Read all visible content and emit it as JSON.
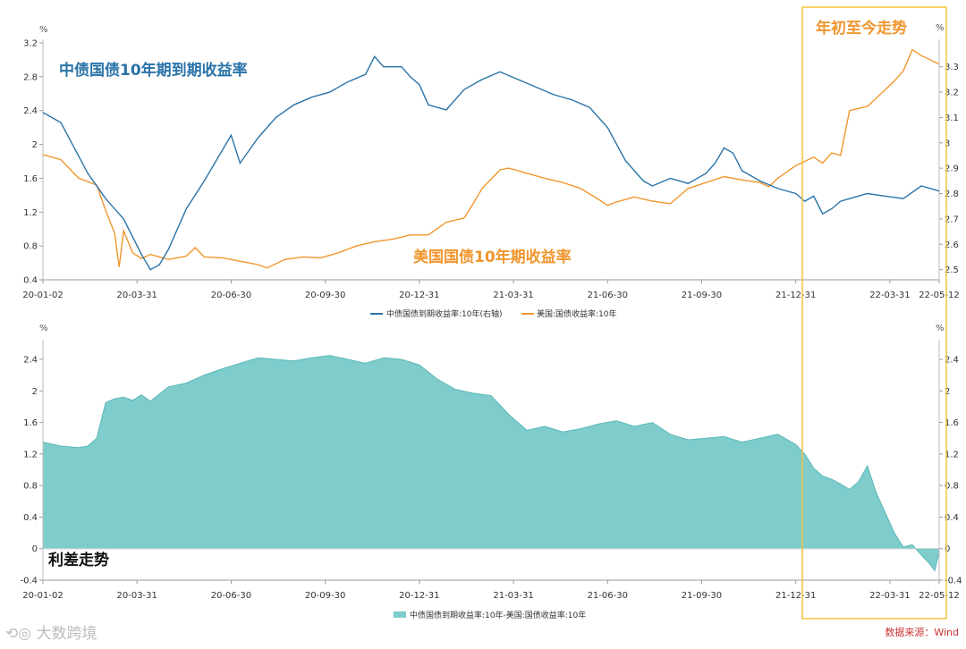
{
  "colors": {
    "cn_line": "#2a73a8",
    "us_line": "#f0962e",
    "spread_fill": "#7ecccc",
    "spread_stroke": "#5db8b8",
    "highlight_box": "#f2c43d",
    "annotation_blue": "#2a73a8",
    "annotation_orange": "#f0962e",
    "annotation_black": "#111111",
    "axis": "#999999"
  },
  "annotations": {
    "cn_label": "中债国债10年期到期收益率",
    "us_label": "美国国债10年期收益率",
    "ytd_label": "年初至今走势",
    "spread_label": "利差走势"
  },
  "watermark": "大数跨境",
  "source": "数据来源：Wind",
  "chart_data": [
    {
      "type": "line",
      "name": "top",
      "x_ticks": [
        "20-01-02",
        "20-03-31",
        "20-06-30",
        "20-09-30",
        "20-12-31",
        "21-03-31",
        "21-06-30",
        "21-09-30",
        "21-12-31",
        "22-03-31",
        "22-05-12"
      ],
      "left_axis": {
        "unit": "%",
        "ticks": [
          "0.4",
          "0.8",
          "1.2",
          "1.6",
          "2",
          "2.4",
          "2.8",
          "3.2"
        ],
        "ylim": [
          0.4,
          3.2
        ]
      },
      "right_axis": {
        "unit": "%",
        "ticks": [
          "2.5",
          "2.6",
          "2.7",
          "2.8",
          "2.9",
          "3",
          "3.1",
          "3.2",
          "3.3"
        ],
        "ylim": [
          2.46,
          3.38
        ]
      },
      "legend": [
        "中债国债到期收益率:10年(右轴)",
        "美国:国债收益率:10年"
      ],
      "series": [
        {
          "name": "中债国债到期收益率:10年(右轴)",
          "axis": "right",
          "points": [
            [
              0,
              3.12
            ],
            [
              0.02,
              3.08
            ],
            [
              0.05,
              2.88
            ],
            [
              0.07,
              2.78
            ],
            [
              0.09,
              2.7
            ],
            [
              0.1,
              2.63
            ],
            [
              0.11,
              2.56
            ],
            [
              0.12,
              2.5
            ],
            [
              0.13,
              2.52
            ],
            [
              0.14,
              2.58
            ],
            [
              0.16,
              2.74
            ],
            [
              0.18,
              2.85
            ],
            [
              0.2,
              2.97
            ],
            [
              0.21,
              3.03
            ],
            [
              0.22,
              2.92
            ],
            [
              0.24,
              3.02
            ],
            [
              0.26,
              3.1
            ],
            [
              0.28,
              3.15
            ],
            [
              0.3,
              3.18
            ],
            [
              0.32,
              3.2
            ],
            [
              0.34,
              3.24
            ],
            [
              0.36,
              3.27
            ],
            [
              0.37,
              3.34
            ],
            [
              0.38,
              3.3
            ],
            [
              0.4,
              3.3
            ],
            [
              0.41,
              3.26
            ],
            [
              0.42,
              3.23
            ],
            [
              0.43,
              3.15
            ],
            [
              0.45,
              3.13
            ],
            [
              0.47,
              3.21
            ],
            [
              0.49,
              3.25
            ],
            [
              0.51,
              3.28
            ],
            [
              0.53,
              3.25
            ],
            [
              0.55,
              3.22
            ],
            [
              0.57,
              3.19
            ],
            [
              0.59,
              3.17
            ],
            [
              0.61,
              3.14
            ],
            [
              0.63,
              3.06
            ],
            [
              0.65,
              2.93
            ],
            [
              0.67,
              2.85
            ],
            [
              0.68,
              2.83
            ],
            [
              0.7,
              2.86
            ],
            [
              0.72,
              2.84
            ],
            [
              0.74,
              2.88
            ],
            [
              0.75,
              2.92
            ],
            [
              0.76,
              2.98
            ],
            [
              0.77,
              2.96
            ],
            [
              0.78,
              2.89
            ],
            [
              0.8,
              2.85
            ],
            [
              0.82,
              2.82
            ],
            [
              0.84,
              2.8
            ],
            [
              0.85,
              2.77
            ],
            [
              0.86,
              2.79
            ],
            [
              0.87,
              2.72
            ],
            [
              0.88,
              2.74
            ],
            [
              0.89,
              2.77
            ],
            [
              0.9,
              2.78
            ],
            [
              0.92,
              2.8
            ],
            [
              0.94,
              2.79
            ],
            [
              0.96,
              2.78
            ],
            [
              0.98,
              2.83
            ],
            [
              1.0,
              2.81
            ]
          ]
        },
        {
          "name": "美国:国债收益率:10年",
          "axis": "left",
          "points": [
            [
              0,
              1.88
            ],
            [
              0.02,
              1.82
            ],
            [
              0.04,
              1.6
            ],
            [
              0.06,
              1.52
            ],
            [
              0.07,
              1.22
            ],
            [
              0.08,
              0.95
            ],
            [
              0.085,
              0.55
            ],
            [
              0.09,
              0.98
            ],
            [
              0.1,
              0.72
            ],
            [
              0.11,
              0.65
            ],
            [
              0.12,
              0.7
            ],
            [
              0.14,
              0.64
            ],
            [
              0.16,
              0.68
            ],
            [
              0.17,
              0.78
            ],
            [
              0.18,
              0.67
            ],
            [
              0.2,
              0.66
            ],
            [
              0.22,
              0.62
            ],
            [
              0.24,
              0.58
            ],
            [
              0.25,
              0.54
            ],
            [
              0.27,
              0.64
            ],
            [
              0.29,
              0.67
            ],
            [
              0.31,
              0.66
            ],
            [
              0.33,
              0.72
            ],
            [
              0.35,
              0.8
            ],
            [
              0.37,
              0.85
            ],
            [
              0.39,
              0.88
            ],
            [
              0.41,
              0.93
            ],
            [
              0.43,
              0.93
            ],
            [
              0.45,
              1.08
            ],
            [
              0.47,
              1.13
            ],
            [
              0.48,
              1.3
            ],
            [
              0.49,
              1.48
            ],
            [
              0.51,
              1.7
            ],
            [
              0.52,
              1.72
            ],
            [
              0.54,
              1.66
            ],
            [
              0.56,
              1.6
            ],
            [
              0.58,
              1.55
            ],
            [
              0.6,
              1.48
            ],
            [
              0.62,
              1.35
            ],
            [
              0.63,
              1.28
            ],
            [
              0.64,
              1.32
            ],
            [
              0.66,
              1.38
            ],
            [
              0.68,
              1.33
            ],
            [
              0.7,
              1.3
            ],
            [
              0.72,
              1.48
            ],
            [
              0.74,
              1.55
            ],
            [
              0.76,
              1.62
            ],
            [
              0.78,
              1.58
            ],
            [
              0.8,
              1.55
            ],
            [
              0.81,
              1.5
            ],
            [
              0.82,
              1.6
            ],
            [
              0.84,
              1.75
            ],
            [
              0.86,
              1.85
            ],
            [
              0.87,
              1.78
            ],
            [
              0.88,
              1.9
            ],
            [
              0.89,
              1.87
            ],
            [
              0.9,
              2.4
            ],
            [
              0.92,
              2.45
            ],
            [
              0.94,
              2.65
            ],
            [
              0.95,
              2.75
            ],
            [
              0.96,
              2.87
            ],
            [
              0.97,
              3.12
            ],
            [
              0.98,
              3.05
            ],
            [
              1.0,
              2.95
            ]
          ]
        }
      ]
    },
    {
      "type": "area",
      "name": "bottom",
      "x_ticks": [
        "20-01-02",
        "20-03-31",
        "20-06-30",
        "20-09-30",
        "20-12-31",
        "21-03-31",
        "21-06-30",
        "21-09-30",
        "21-12-31",
        "22-03-31",
        "22-05-12"
      ],
      "left_axis": {
        "unit": "%",
        "ticks": [
          "-0.4",
          "0",
          "0.4",
          "0.8",
          "1.2",
          "1.6",
          "2",
          "2.4"
        ],
        "ylim": [
          -0.4,
          2.4
        ]
      },
      "right_axis": {
        "unit": "%",
        "ticks": [
          "-0.4",
          "0",
          "0.4",
          "0.8",
          "1.2",
          "1.6",
          "2",
          "2.4"
        ],
        "ylim": [
          -0.4,
          2.4
        ]
      },
      "legend": [
        "中债国债到期收益率:10年-美国:国债收益率:10年"
      ],
      "series": [
        {
          "name": "中债国债到期收益率:10年-美国:国债收益率:10年",
          "points": [
            [
              0,
              1.35
            ],
            [
              0.02,
              1.3
            ],
            [
              0.04,
              1.28
            ],
            [
              0.05,
              1.3
            ],
            [
              0.06,
              1.4
            ],
            [
              0.07,
              1.85
            ],
            [
              0.08,
              1.9
            ],
            [
              0.09,
              1.92
            ],
            [
              0.1,
              1.88
            ],
            [
              0.11,
              1.95
            ],
            [
              0.12,
              1.87
            ],
            [
              0.14,
              2.05
            ],
            [
              0.16,
              2.1
            ],
            [
              0.18,
              2.2
            ],
            [
              0.2,
              2.28
            ],
            [
              0.22,
              2.35
            ],
            [
              0.24,
              2.42
            ],
            [
              0.26,
              2.4
            ],
            [
              0.28,
              2.38
            ],
            [
              0.3,
              2.42
            ],
            [
              0.32,
              2.45
            ],
            [
              0.34,
              2.4
            ],
            [
              0.36,
              2.35
            ],
            [
              0.38,
              2.42
            ],
            [
              0.4,
              2.4
            ],
            [
              0.42,
              2.33
            ],
            [
              0.44,
              2.15
            ],
            [
              0.46,
              2.02
            ],
            [
              0.48,
              1.97
            ],
            [
              0.5,
              1.94
            ],
            [
              0.52,
              1.7
            ],
            [
              0.53,
              1.6
            ],
            [
              0.54,
              1.5
            ],
            [
              0.56,
              1.55
            ],
            [
              0.58,
              1.48
            ],
            [
              0.6,
              1.52
            ],
            [
              0.62,
              1.58
            ],
            [
              0.64,
              1.62
            ],
            [
              0.66,
              1.55
            ],
            [
              0.68,
              1.6
            ],
            [
              0.7,
              1.45
            ],
            [
              0.72,
              1.38
            ],
            [
              0.74,
              1.4
            ],
            [
              0.76,
              1.42
            ],
            [
              0.78,
              1.35
            ],
            [
              0.8,
              1.4
            ],
            [
              0.82,
              1.45
            ],
            [
              0.84,
              1.32
            ],
            [
              0.85,
              1.2
            ],
            [
              0.86,
              1.02
            ],
            [
              0.87,
              0.92
            ],
            [
              0.88,
              0.88
            ],
            [
              0.89,
              0.82
            ],
            [
              0.9,
              0.75
            ],
            [
              0.91,
              0.85
            ],
            [
              0.92,
              1.05
            ],
            [
              0.93,
              0.7
            ],
            [
              0.94,
              0.45
            ],
            [
              0.95,
              0.2
            ],
            [
              0.96,
              0.02
            ],
            [
              0.97,
              0.05
            ],
            [
              0.98,
              -0.08
            ],
            [
              0.99,
              -0.2
            ],
            [
              0.995,
              -0.28
            ],
            [
              1.0,
              -0.05
            ]
          ]
        }
      ]
    }
  ]
}
